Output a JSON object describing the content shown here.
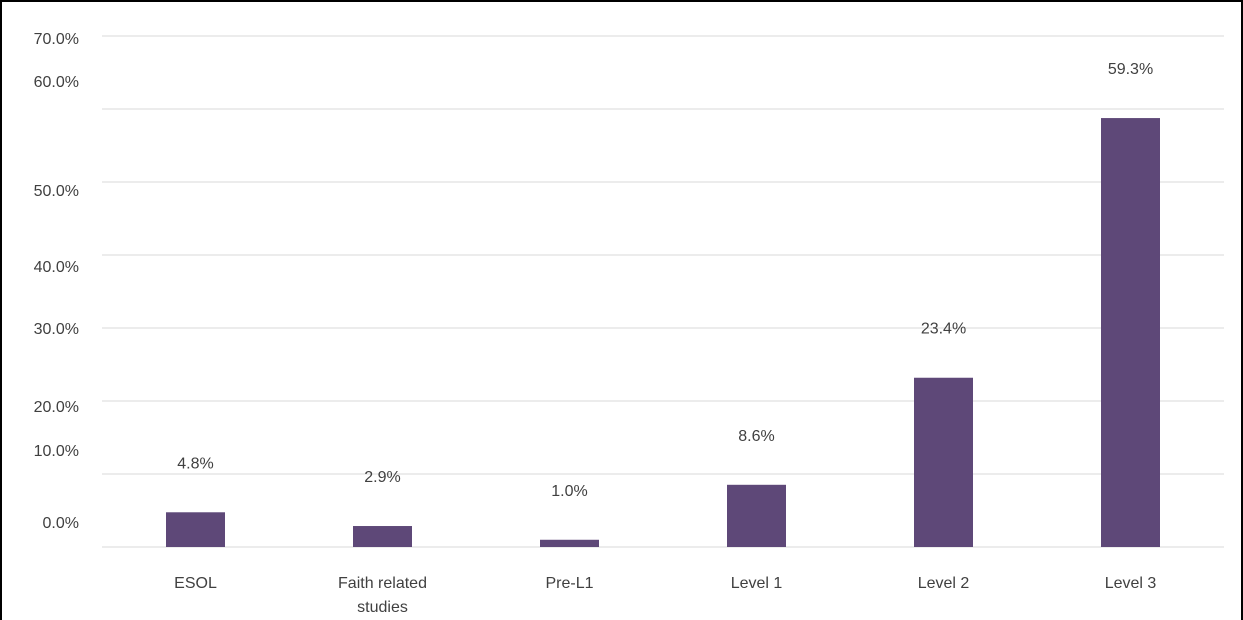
{
  "chart_data": {
    "type": "bar",
    "categories": [
      [
        "ESOL"
      ],
      [
        "Faith related",
        "studies"
      ],
      [
        "Pre-L1"
      ],
      [
        "Level 1"
      ],
      [
        "Level 2"
      ],
      [
        "Level 3"
      ]
    ],
    "values": [
      4.8,
      2.9,
      1.0,
      8.6,
      23.4,
      59.3
    ],
    "data_labels": [
      "4.8%",
      "2.9%",
      "1.0%",
      "8.6%",
      "23.4%",
      "59.3%"
    ],
    "y_ticks": [
      "0.0%",
      "10.0%",
      "20.0%",
      "30.0%",
      "40.0%",
      "50.0%",
      "60.0%",
      "70.0%"
    ],
    "ylim": [
      0,
      60
    ],
    "grid": true,
    "legend": "none",
    "bar_color": "#5e4878",
    "grid_color": "#d9d9d9",
    "label_color": "#404040",
    "title": "",
    "xlabel": "",
    "ylabel": ""
  }
}
